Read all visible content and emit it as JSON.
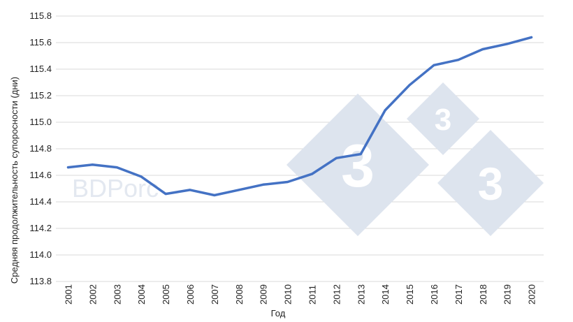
{
  "watermark": {
    "text": "BDPorc",
    "logo_glyphs": [
      "3",
      "3",
      "3"
    ],
    "color": "#dde4ee"
  },
  "chart_data": {
    "type": "line",
    "xlabel": "Год",
    "ylabel": "Средняя продолжительность супоросности (дни)",
    "categories": [
      "2001",
      "2002",
      "2003",
      "2004",
      "2005",
      "2006",
      "2007",
      "2008",
      "2009",
      "2010",
      "2011",
      "2012",
      "2013",
      "2014",
      "2015",
      "2016",
      "2017",
      "2018",
      "2019",
      "2020"
    ],
    "series": [
      {
        "values": [
          114.66,
          114.68,
          114.66,
          114.59,
          114.46,
          114.49,
          114.45,
          114.49,
          114.53,
          114.55,
          114.61,
          114.73,
          114.76,
          115.09,
          115.28,
          115.43,
          115.47,
          115.55,
          115.59,
          115.64
        ],
        "color": "#4472c4"
      }
    ],
    "ylim": [
      113.8,
      115.8
    ],
    "yticks": [
      "113.8",
      "114.0",
      "114.2",
      "114.4",
      "114.6",
      "114.8",
      "115.0",
      "115.2",
      "115.4",
      "115.6",
      "115.8"
    ],
    "grid": true,
    "legend": "none"
  }
}
